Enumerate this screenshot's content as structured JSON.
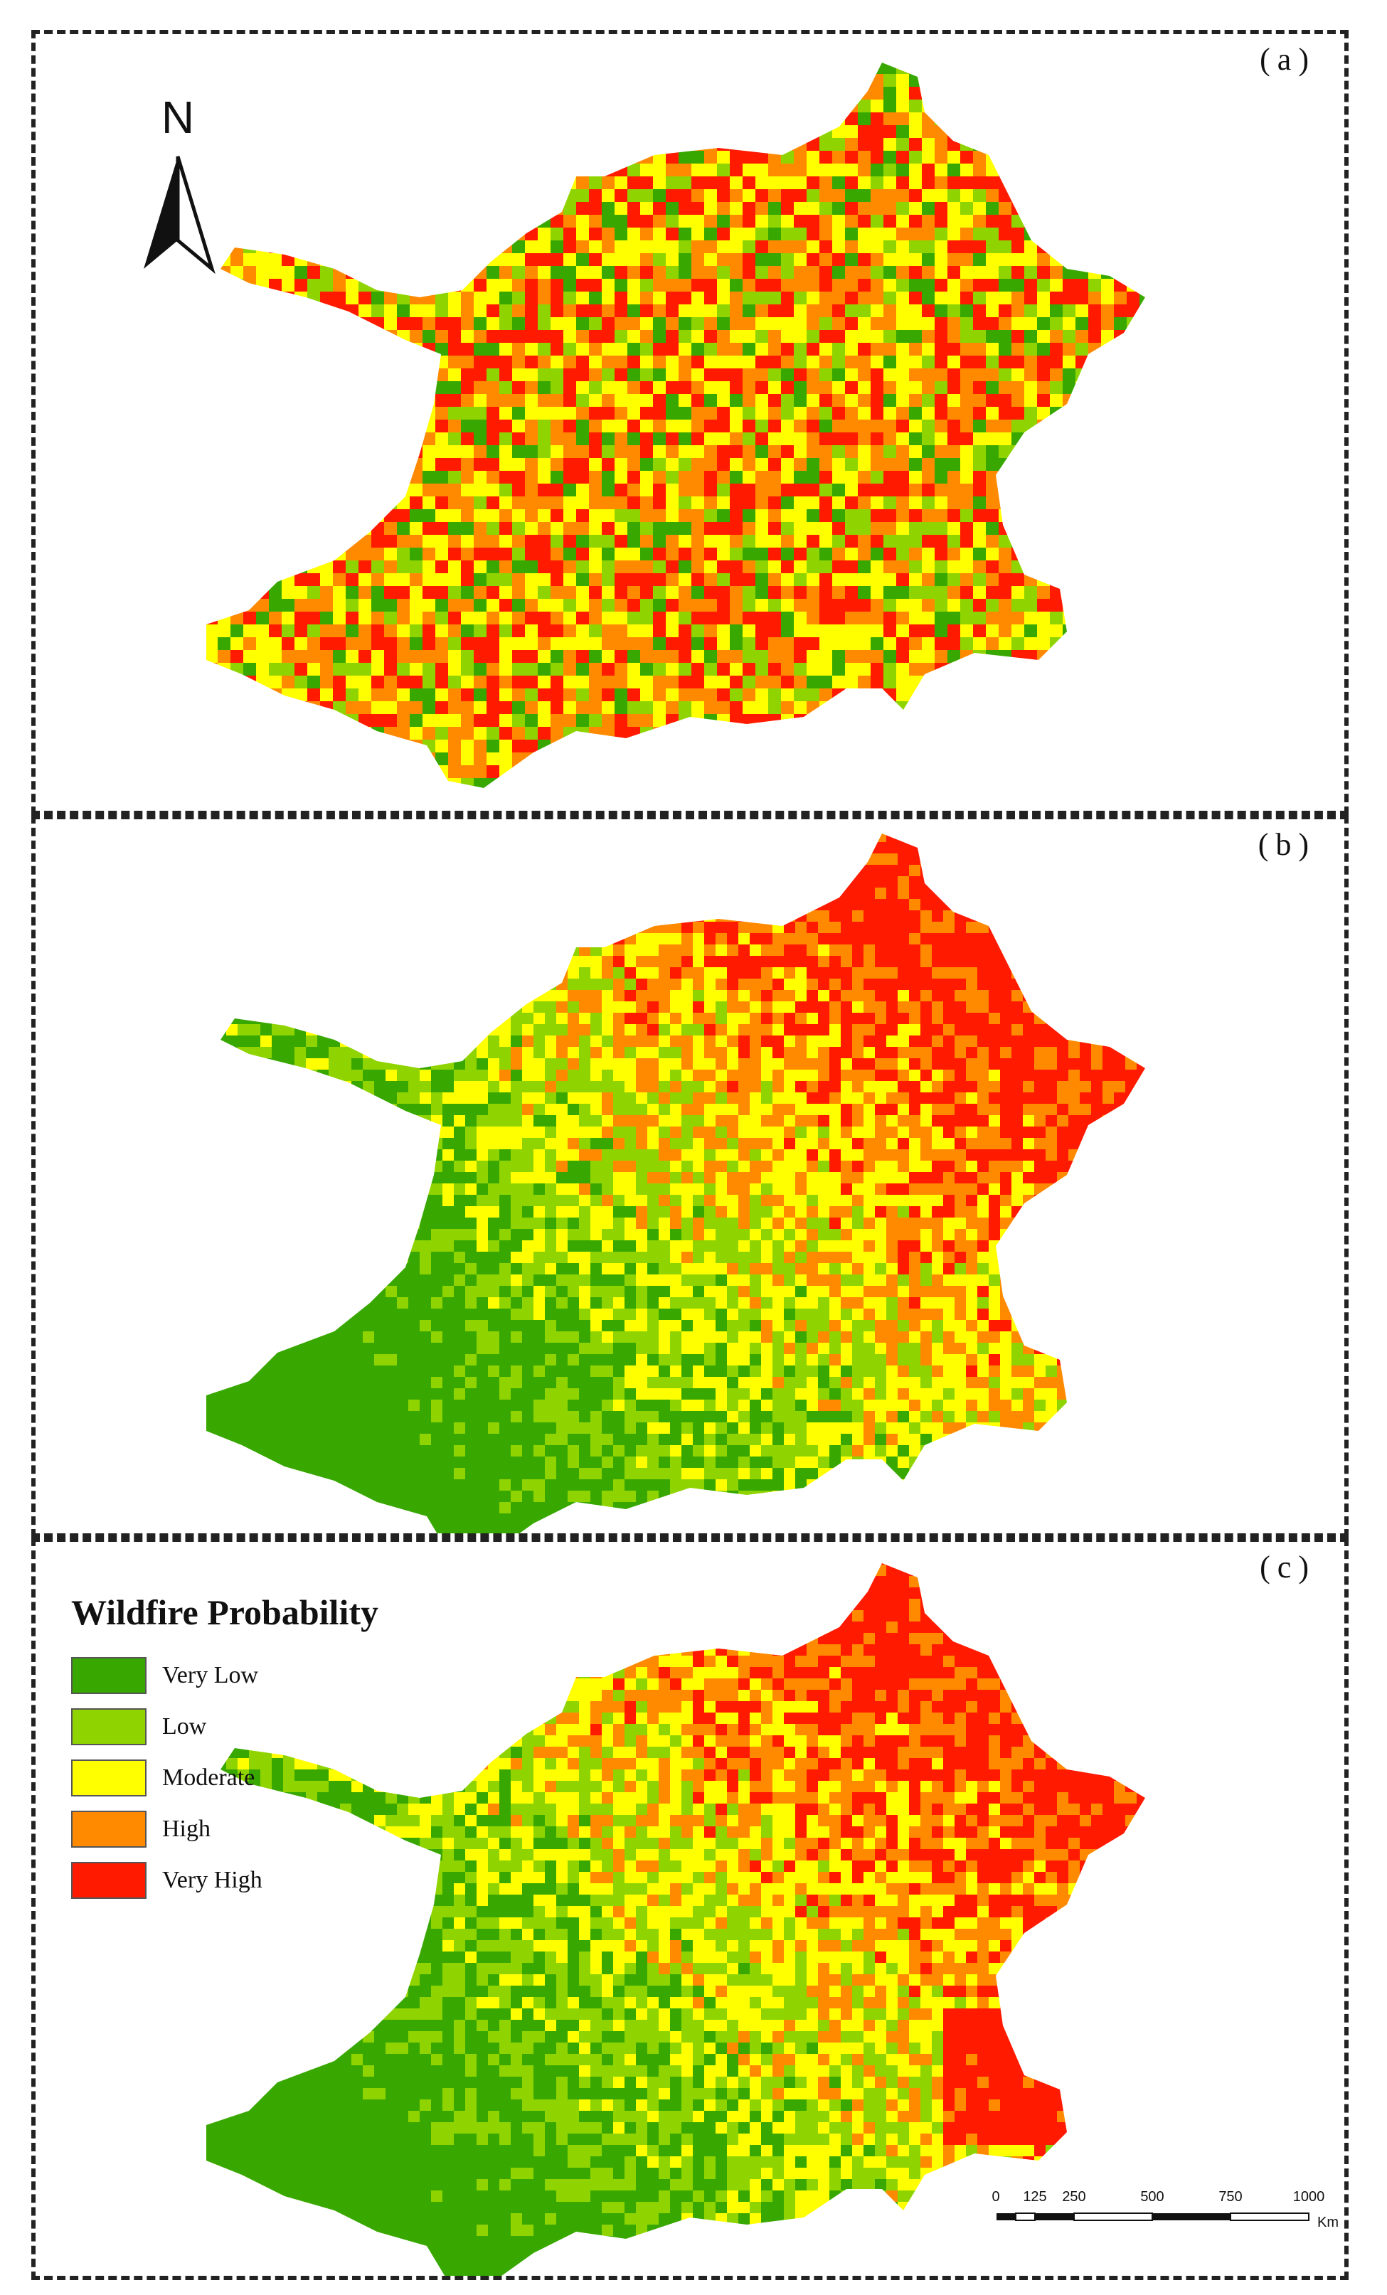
{
  "panels": [
    {
      "id": "a",
      "label": "(a)"
    },
    {
      "id": "b",
      "label": "(b)"
    },
    {
      "id": "c",
      "label": "(c)"
    }
  ],
  "north_arrow": {
    "letter": "N"
  },
  "legend": {
    "title": "Wildfire Probability",
    "items": [
      {
        "label": "Very Low",
        "color": "#38a800"
      },
      {
        "label": "Low",
        "color": "#8fd400"
      },
      {
        "label": "Moderate",
        "color": "#ffff00"
      },
      {
        "label": "High",
        "color": "#ff8a00"
      },
      {
        "label": "Very High",
        "color": "#ff1a00"
      }
    ]
  },
  "scale_bar": {
    "ticks": [
      "0",
      "125",
      "250",
      "500",
      "750",
      "1000"
    ],
    "unit": "Km"
  },
  "colors": {
    "very_low": "#38a800",
    "low": "#8fd400",
    "moderate": "#ffff00",
    "high": "#ff8a00",
    "very_high": "#ff1a00"
  }
}
